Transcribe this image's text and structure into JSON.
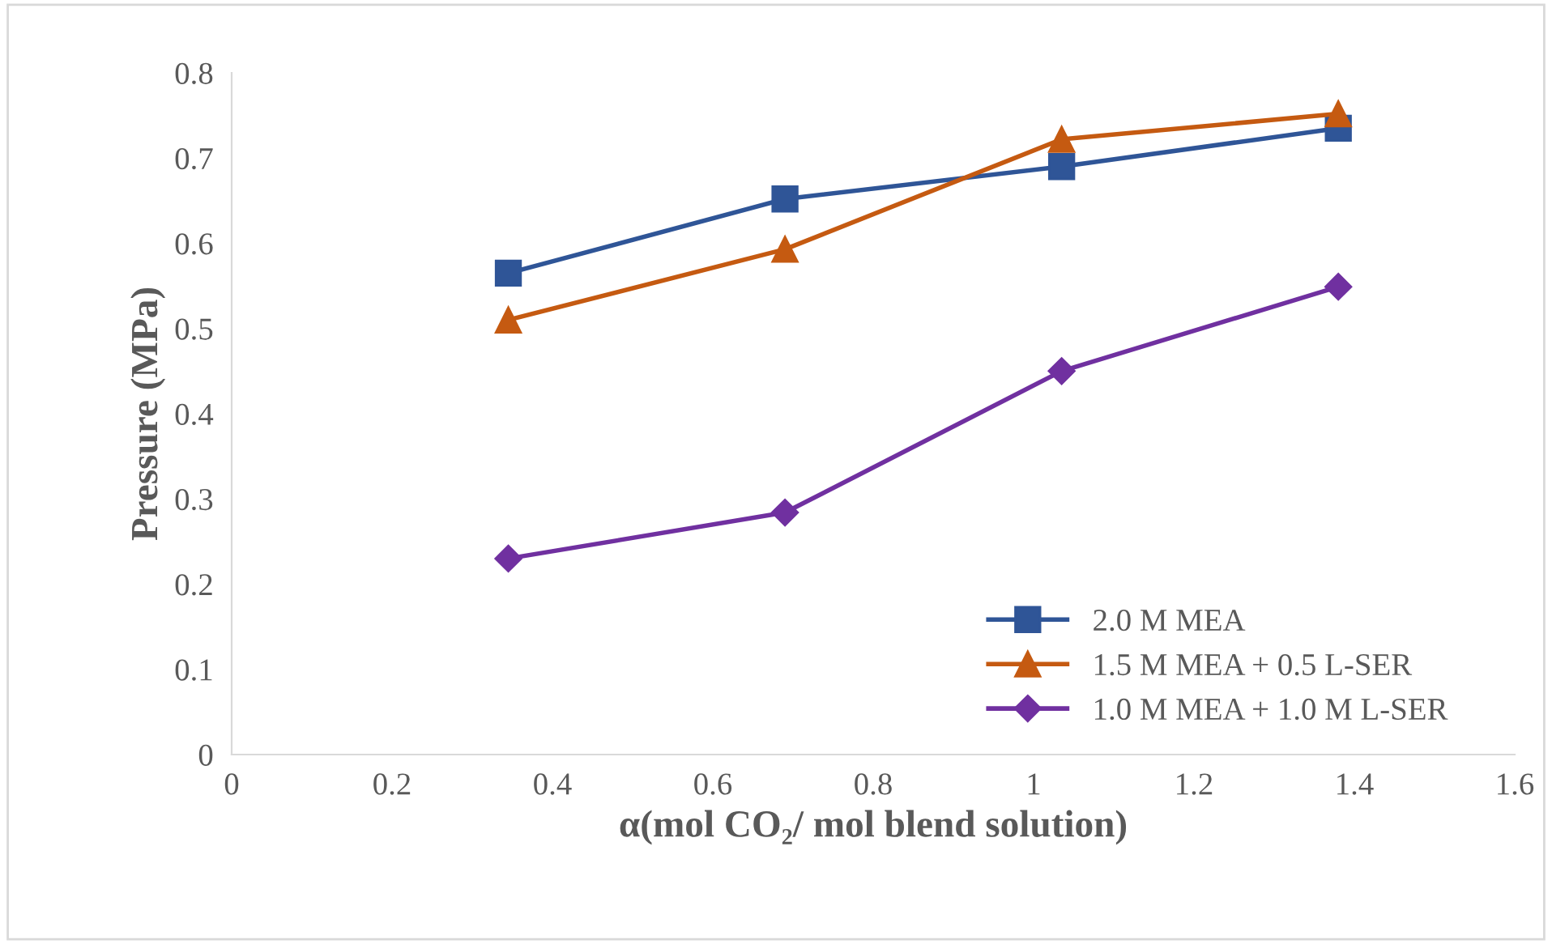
{
  "chart_data": {
    "type": "line",
    "xlabel": "α(mol CO₂/ mol blend solution)",
    "ylabel": "Pressure (MPa)",
    "x": [
      0.345,
      0.69,
      1.035,
      1.38
    ],
    "series": [
      {
        "name": "2.0 M MEA",
        "color": "#2f5597",
        "marker": "square",
        "values": [
          0.565,
          0.652,
          0.69,
          0.735
        ]
      },
      {
        "name": "1.5 M MEA + 0.5 L-SER",
        "color": "#c55a11",
        "marker": "triangle",
        "values": [
          0.51,
          0.593,
          0.722,
          0.752
        ]
      },
      {
        "name": "1.0 M MEA + 1.0 M L-SER",
        "color": "#7030a0",
        "marker": "diamond",
        "values": [
          0.23,
          0.284,
          0.45,
          0.549
        ]
      }
    ],
    "xlim": [
      0,
      1.6
    ],
    "xticks": [
      0,
      0.2,
      0.4,
      0.6,
      0.8,
      1,
      1.2,
      1.4,
      1.6
    ],
    "ylim": [
      0,
      0.8
    ],
    "yticks": [
      0,
      0.1,
      0.2,
      0.3,
      0.4,
      0.5,
      0.6,
      0.7,
      0.8
    ],
    "grid": false,
    "legend": "bottom right",
    "line_style": "solid"
  }
}
